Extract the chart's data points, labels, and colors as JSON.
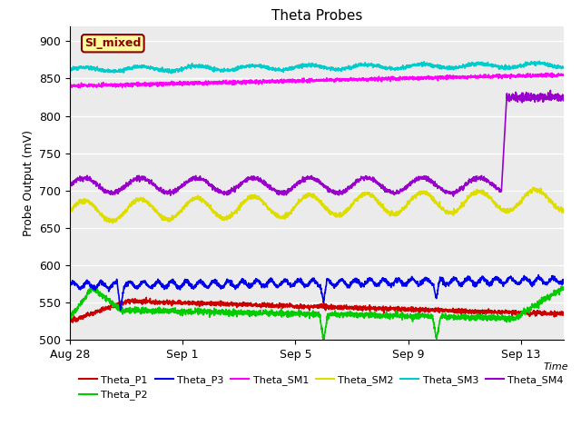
{
  "title": "Theta Probes",
  "xlabel": "Time",
  "ylabel": "Probe Output (mV)",
  "background_color": "#e8e8e8",
  "plot_bg": "#ebebeb",
  "annotation_label": "SI_mixed",
  "annotation_bg": "#ffff99",
  "annotation_border": "#8b0000",
  "x_tick_labels": [
    "Aug 28",
    "Sep 1",
    "Sep 5",
    "Sep 9",
    "Sep 13"
  ],
  "x_tick_positions": [
    0,
    4,
    8,
    12,
    16
  ],
  "ylim": [
    500,
    920
  ],
  "yticks": [
    500,
    550,
    600,
    650,
    700,
    750,
    800,
    850,
    900
  ],
  "total_days": 17.5,
  "samples_per_day": 144,
  "colors": {
    "Theta_P1": "#cc0000",
    "Theta_P2": "#00cc00",
    "Theta_P3": "#0000ee",
    "Theta_SM1": "#ff00ff",
    "Theta_SM2": "#dddd00",
    "Theta_SM3": "#00cccc",
    "Theta_SM4": "#9900cc"
  },
  "legend_order": [
    "Theta_P1",
    "Theta_P2",
    "Theta_P3",
    "Theta_SM1",
    "Theta_SM2",
    "Theta_SM3",
    "Theta_SM4"
  ]
}
